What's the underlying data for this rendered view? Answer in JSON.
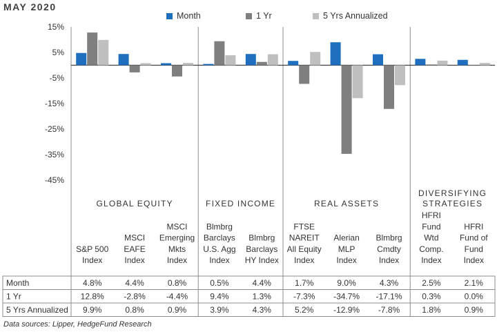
{
  "title": "MAY 2020",
  "source": "Data sources: Lipper, HedgeFund Research",
  "colors": {
    "month": "#1f6fbf",
    "one_yr": "#7f7f7f",
    "five_yr": "#bfbfbf",
    "grid": "#bfbfbf",
    "zero": "#404040"
  },
  "chart_data": {
    "type": "bar",
    "ylim": [
      -45,
      15
    ],
    "yticks": [
      15,
      5,
      -5,
      -15,
      -25,
      -35,
      -45
    ],
    "ytick_labels": [
      "15%",
      "5%",
      "-5%",
      "-15%",
      "-25%",
      "-35%",
      "-45%"
    ],
    "legend_position": "top",
    "categories": [
      "S&P 500\nIndex",
      "MSCI\nEAFE\nIndex",
      "MSCI\nEmerging\nMkts\nIndex",
      "Blmbrg\nBarclays\nU.S. Agg\nIndex",
      "Blmbrg\nBarclays\nHY Index",
      "FTSE\nNAREIT\nAll Equity\nIndex",
      "Alerian\nMLP\nIndex",
      "Blmbrg\nCmdty\nIndex",
      "HFRI\nFund\nWtd\nComp.\nIndex",
      "HFRI\nFund of\nFund\nIndex"
    ],
    "groups": [
      {
        "label": "GLOBAL EQUITY",
        "count": 3
      },
      {
        "label": "FIXED INCOME",
        "count": 2
      },
      {
        "label": "REAL ASSETS",
        "count": 3
      },
      {
        "label": "DIVERSIFYING\nSTRATEGIES",
        "count": 2
      }
    ],
    "series": [
      {
        "name": "Month",
        "values": [
          4.8,
          4.4,
          0.8,
          0.5,
          4.4,
          1.7,
          9.0,
          4.3,
          2.5,
          2.1
        ]
      },
      {
        "name": "1 Yr",
        "values": [
          12.8,
          -2.8,
          -4.4,
          9.4,
          1.3,
          -7.3,
          -34.7,
          -17.1,
          0.3,
          0.0
        ]
      },
      {
        "name": "5 Yrs Annualized",
        "values": [
          9.9,
          0.8,
          0.9,
          3.9,
          4.3,
          5.2,
          -12.9,
          -7.8,
          1.8,
          0.9
        ]
      }
    ],
    "table_rows": [
      {
        "label": "Month",
        "cells": [
          "4.8%",
          "4.4%",
          "0.8%",
          "0.5%",
          "4.4%",
          "1.7%",
          "9.0%",
          "4.3%",
          "2.5%",
          "2.1%"
        ]
      },
      {
        "label": "1 Yr",
        "cells": [
          "12.8%",
          "-2.8%",
          "-4.4%",
          "9.4%",
          "1.3%",
          "-7.3%",
          "-34.7%",
          "-17.1%",
          "0.3%",
          "0.0%"
        ]
      },
      {
        "label": "5 Yrs Annualized",
        "cells": [
          "9.9%",
          "0.8%",
          "0.9%",
          "3.9%",
          "4.3%",
          "5.2%",
          "-12.9%",
          "-7.8%",
          "1.8%",
          "0.9%"
        ]
      }
    ]
  }
}
